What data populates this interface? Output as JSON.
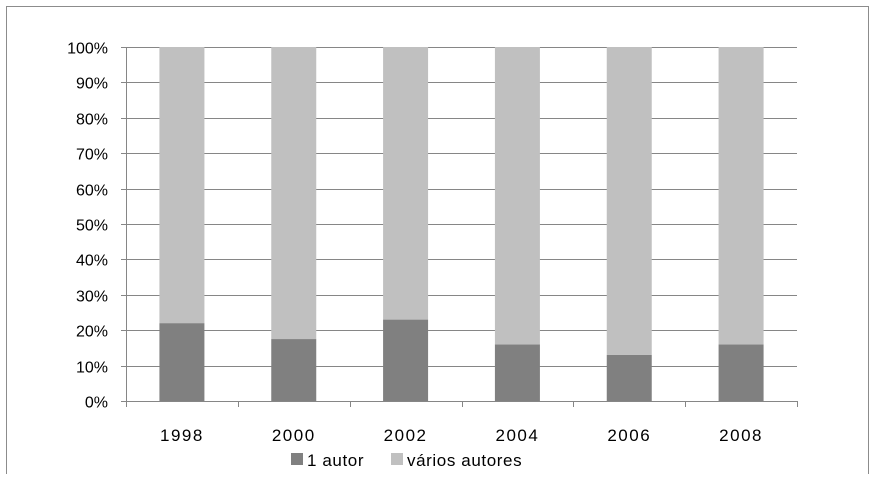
{
  "chart_data": {
    "type": "bar",
    "stacked": true,
    "percent_stacked": true,
    "categories": [
      "1998",
      "2000",
      "2002",
      "2004",
      "2006",
      "2008"
    ],
    "series": [
      {
        "name": "1 autor",
        "values": [
          22,
          17.5,
          23,
          16,
          13,
          16
        ],
        "color": "#808080"
      },
      {
        "name": "vários autores",
        "values": [
          78,
          82.5,
          77,
          84,
          87,
          84
        ],
        "color": "#c0c0c0"
      }
    ],
    "y_ticks": [
      "0%",
      "10%",
      "20%",
      "30%",
      "40%",
      "50%",
      "60%",
      "70%",
      "80%",
      "90%",
      "100%"
    ],
    "ylim": [
      0,
      100
    ],
    "grid": true,
    "legend_position": "bottom",
    "title": "",
    "xlabel": "",
    "ylabel": ""
  }
}
